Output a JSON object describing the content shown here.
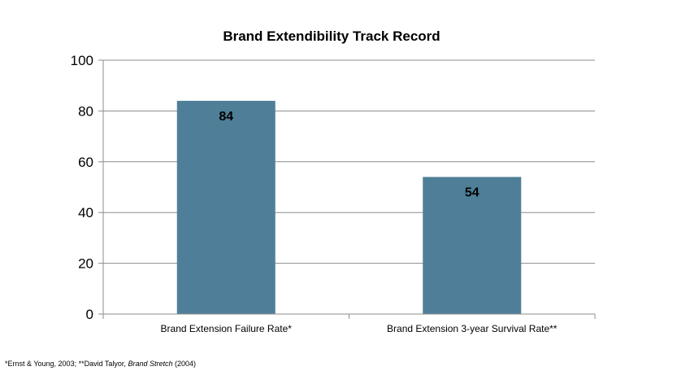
{
  "chart_data": {
    "type": "bar",
    "title": "Brand Extendibility Track Record",
    "categories": [
      "Brand Extension Failure Rate*",
      "Brand Extension 3-year Survival Rate**"
    ],
    "values": [
      84,
      54
    ],
    "data_labels": [
      "84",
      "54"
    ],
    "xlabel": "",
    "ylabel": "",
    "ylim": [
      0,
      100
    ],
    "yticks": [
      0,
      20,
      40,
      60,
      80,
      100
    ],
    "grid": true,
    "legend": "none",
    "bar_color": "#4f7f98"
  },
  "footnote": {
    "part1": "*Ernst & Young, 2003;  **David Talyor, ",
    "book": "Brand Stretch",
    "part2": " (2004)"
  }
}
